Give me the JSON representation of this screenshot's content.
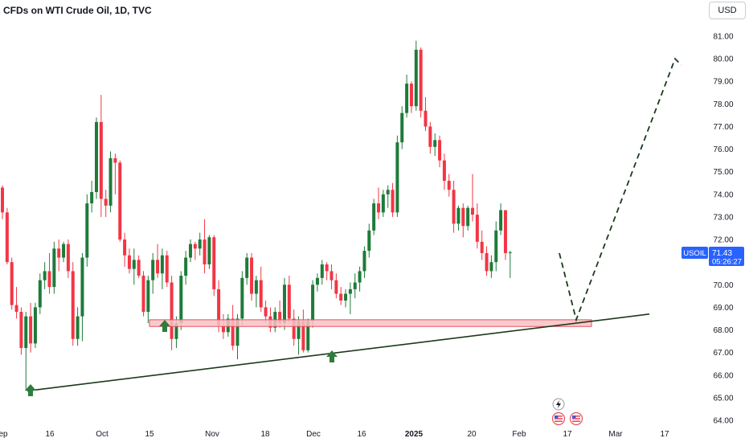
{
  "header": {
    "title": "CFDs on WTI Crude Oil, 1D, TVC",
    "currency_button": "USD"
  },
  "price_badge": {
    "symbol": "USOIL",
    "price": "71.43",
    "countdown": "05:26:27",
    "color": "#2962ff"
  },
  "colors": {
    "up": "#1e7b3a",
    "down": "#f23645",
    "zone_fill": "#f7c1c5",
    "zone_stroke": "#e8505b",
    "trendline": "#1b3a1b",
    "arrow": "#2e7d3e",
    "projection": "#1b3a1b"
  },
  "icons": [
    "lightning-icon",
    "us-flag-icon",
    "us-flag-icon"
  ],
  "chart_data": {
    "type": "candlestick",
    "title": "CFDs on WTI Crude Oil, 1D, TVC",
    "currency": "USD",
    "y_ticks": [
      "81.00",
      "80.00",
      "79.00",
      "78.00",
      "77.00",
      "76.00",
      "75.00",
      "74.00",
      "73.00",
      "72.00",
      "71.00",
      "70.00",
      "69.00",
      "68.00",
      "67.00",
      "66.00",
      "65.00",
      "64.00"
    ],
    "ylim": [
      63.8,
      81.6
    ],
    "x_ticks": [
      "ep",
      "16",
      "Oct",
      "15",
      "Nov",
      "18",
      "Dec",
      "16",
      "2025",
      "20",
      "Feb",
      "17",
      "Mar",
      "17"
    ],
    "last_price": 71.43,
    "support_zone": [
      68.15,
      68.45
    ],
    "trendline": {
      "from": 65.3,
      "to": 68.7
    },
    "projection": [
      71.4,
      68.45,
      80.0
    ],
    "candles": [
      [
        74.3,
        74.4,
        72.9,
        73.2
      ],
      [
        73.2,
        73.4,
        70.9,
        71.0
      ],
      [
        71.0,
        71.2,
        68.9,
        69.1
      ],
      [
        69.1,
        69.9,
        68.5,
        68.8
      ],
      [
        68.8,
        69.0,
        66.9,
        67.2
      ],
      [
        67.2,
        68.8,
        65.3,
        68.6
      ],
      [
        68.6,
        69.2,
        67.0,
        67.4
      ],
      [
        67.4,
        69.2,
        67.2,
        69.0
      ],
      [
        69.0,
        70.5,
        68.7,
        70.2
      ],
      [
        70.2,
        71.0,
        69.8,
        70.6
      ],
      [
        70.6,
        71.4,
        69.6,
        69.9
      ],
      [
        69.9,
        71.9,
        69.6,
        71.6
      ],
      [
        71.6,
        72.0,
        70.6,
        71.2
      ],
      [
        71.2,
        71.9,
        71.0,
        71.8
      ],
      [
        71.8,
        72.0,
        70.3,
        70.6
      ],
      [
        70.6,
        71.0,
        67.3,
        67.6
      ],
      [
        67.6,
        69.0,
        67.3,
        68.6
      ],
      [
        68.6,
        71.4,
        67.5,
        71.2
      ],
      [
        71.2,
        74.0,
        70.8,
        73.6
      ],
      [
        73.6,
        74.6,
        73.2,
        74.1
      ],
      [
        74.1,
        77.4,
        73.8,
        77.2
      ],
      [
        77.2,
        78.4,
        73.0,
        73.8
      ],
      [
        73.8,
        74.2,
        73.0,
        73.5
      ],
      [
        73.5,
        75.9,
        73.2,
        75.6
      ],
      [
        75.6,
        75.8,
        74.0,
        75.4
      ],
      [
        75.4,
        75.5,
        71.9,
        72.0
      ],
      [
        72.0,
        72.3,
        70.8,
        71.3
      ],
      [
        71.3,
        71.6,
        70.5,
        70.7
      ],
      [
        70.7,
        71.6,
        70.0,
        71.1
      ],
      [
        71.1,
        71.3,
        70.3,
        70.4
      ],
      [
        70.4,
        70.6,
        68.6,
        68.8
      ],
      [
        68.8,
        70.4,
        68.3,
        70.2
      ],
      [
        70.2,
        71.4,
        69.6,
        71.1
      ],
      [
        71.1,
        71.8,
        70.3,
        70.5
      ],
      [
        70.5,
        71.6,
        69.8,
        71.3
      ],
      [
        71.3,
        71.5,
        69.9,
        70.1
      ],
      [
        70.1,
        70.4,
        67.1,
        67.6
      ],
      [
        67.6,
        68.6,
        67.2,
        68.3
      ],
      [
        68.3,
        70.6,
        68.0,
        70.4
      ],
      [
        70.4,
        71.5,
        70.0,
        71.2
      ],
      [
        71.2,
        72.0,
        71.0,
        71.8
      ],
      [
        71.8,
        71.9,
        71.1,
        71.6
      ],
      [
        71.6,
        72.3,
        71.3,
        72.0
      ],
      [
        72.0,
        72.9,
        70.5,
        70.9
      ],
      [
        70.9,
        72.2,
        70.7,
        72.1
      ],
      [
        72.1,
        72.2,
        69.5,
        69.8
      ],
      [
        69.8,
        70.2,
        67.9,
        68.2
      ],
      [
        68.2,
        68.7,
        67.6,
        67.9
      ],
      [
        67.9,
        68.7,
        67.7,
        68.5
      ],
      [
        68.5,
        69.1,
        67.1,
        67.3
      ],
      [
        67.3,
        68.7,
        66.7,
        68.5
      ],
      [
        68.5,
        70.6,
        68.2,
        70.3
      ],
      [
        70.3,
        71.4,
        70.0,
        71.2
      ],
      [
        71.2,
        71.4,
        69.3,
        69.6
      ],
      [
        69.6,
        70.4,
        69.0,
        70.2
      ],
      [
        70.2,
        70.8,
        68.8,
        69.0
      ],
      [
        69.0,
        69.3,
        68.3,
        68.6
      ],
      [
        68.6,
        69.0,
        67.9,
        68.1
      ],
      [
        68.1,
        69.0,
        67.9,
        68.8
      ],
      [
        68.8,
        69.3,
        68.1,
        68.3
      ],
      [
        68.3,
        70.3,
        68.0,
        70.0
      ],
      [
        70.0,
        70.4,
        68.3,
        68.5
      ],
      [
        68.5,
        68.9,
        67.3,
        67.6
      ],
      [
        67.6,
        68.6,
        66.9,
        68.4
      ],
      [
        68.4,
        68.9,
        67.0,
        67.1
      ],
      [
        67.1,
        68.5,
        67.0,
        68.4
      ],
      [
        68.4,
        70.2,
        68.1,
        70.0
      ],
      [
        70.0,
        70.5,
        69.7,
        70.3
      ],
      [
        70.3,
        71.1,
        70.0,
        70.9
      ],
      [
        70.9,
        71.0,
        70.2,
        70.6
      ],
      [
        70.6,
        70.9,
        69.8,
        70.2
      ],
      [
        70.2,
        70.5,
        69.4,
        69.6
      ],
      [
        69.6,
        69.9,
        69.1,
        69.3
      ],
      [
        69.3,
        69.8,
        69.0,
        69.6
      ],
      [
        69.6,
        70.1,
        68.7,
        69.8
      ],
      [
        69.8,
        70.5,
        69.4,
        70.1
      ],
      [
        70.1,
        70.8,
        69.7,
        70.6
      ],
      [
        70.6,
        71.7,
        70.3,
        71.5
      ],
      [
        71.5,
        72.7,
        71.2,
        72.4
      ],
      [
        72.4,
        73.8,
        72.2,
        73.6
      ],
      [
        73.6,
        74.3,
        72.9,
        73.2
      ],
      [
        73.2,
        74.2,
        73.0,
        74.0
      ],
      [
        74.0,
        74.4,
        73.4,
        74.2
      ],
      [
        74.2,
        74.5,
        73.0,
        73.2
      ],
      [
        73.2,
        76.6,
        73.0,
        76.3
      ],
      [
        76.3,
        77.9,
        76.0,
        77.6
      ],
      [
        77.6,
        79.3,
        77.4,
        78.9
      ],
      [
        78.9,
        79.0,
        77.6,
        77.9
      ],
      [
        77.9,
        80.8,
        77.7,
        80.4
      ],
      [
        80.4,
        80.5,
        77.4,
        77.7
      ],
      [
        77.7,
        78.3,
        76.8,
        77.0
      ],
      [
        77.0,
        77.2,
        75.8,
        76.1
      ],
      [
        76.1,
        76.7,
        75.7,
        76.4
      ],
      [
        76.4,
        76.6,
        75.2,
        75.5
      ],
      [
        75.5,
        75.8,
        74.2,
        74.6
      ],
      [
        74.6,
        74.9,
        73.9,
        74.2
      ],
      [
        74.2,
        74.6,
        72.3,
        72.7
      ],
      [
        72.7,
        73.5,
        72.4,
        73.4
      ],
      [
        73.4,
        73.6,
        72.1,
        72.6
      ],
      [
        72.6,
        73.5,
        72.4,
        73.4
      ],
      [
        73.4,
        74.9,
        72.8,
        73.1
      ],
      [
        73.1,
        73.6,
        71.6,
        71.9
      ],
      [
        71.9,
        72.4,
        71.1,
        71.4
      ],
      [
        71.4,
        71.7,
        70.4,
        70.6
      ],
      [
        70.6,
        71.3,
        70.3,
        71.0
      ],
      [
        71.0,
        72.8,
        70.6,
        72.4
      ],
      [
        72.4,
        73.6,
        72.2,
        73.3
      ],
      [
        73.3,
        73.3,
        71.1,
        71.4
      ],
      [
        71.4,
        71.5,
        70.3,
        71.43
      ]
    ]
  }
}
